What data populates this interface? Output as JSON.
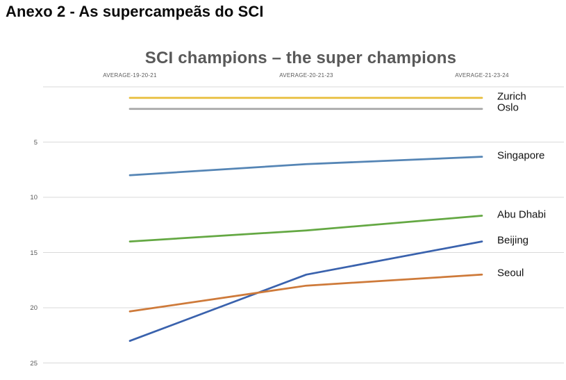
{
  "page": {
    "heading": "Anexo 2 - As supercampeãs do SCI"
  },
  "chart_data": {
    "type": "line",
    "title": "SCI champions – the super champions",
    "categories": [
      "AVERAGE-19-20-21",
      "AVERAGE-20-21-23",
      "AVERAGE-21-23-24"
    ],
    "x_axis_position": "top",
    "y_axis": {
      "inverted": true,
      "range": [
        0,
        25
      ],
      "tick_labels": [
        5,
        10,
        15,
        20,
        25
      ],
      "gridline_values": [
        0,
        5,
        10,
        15,
        20,
        25
      ],
      "grid": true
    },
    "legend_position": "labels-at-line-ends-right",
    "series": [
      {
        "name": "Zurich",
        "color": "#E7BD3A",
        "values": [
          1,
          1,
          1
        ]
      },
      {
        "name": "Oslo",
        "color": "#A6A6A6",
        "values": [
          2,
          2,
          2
        ]
      },
      {
        "name": "Singapore",
        "color": "#5585B5",
        "values": [
          8,
          7,
          6.33
        ]
      },
      {
        "name": "Abu Dhabi",
        "color": "#64A843",
        "values": [
          14,
          13,
          11.67
        ]
      },
      {
        "name": "Beijing",
        "color": "#3A62AD",
        "values": [
          23,
          17,
          14
        ]
      },
      {
        "name": "Seoul",
        "color": "#CE7A3A",
        "values": [
          20.33,
          18,
          17
        ]
      }
    ]
  },
  "colors": {
    "chart_title_text": "#595959",
    "axis_text": "#595959",
    "gridline": "#D9D9D9",
    "series_label_text": "#111111"
  }
}
